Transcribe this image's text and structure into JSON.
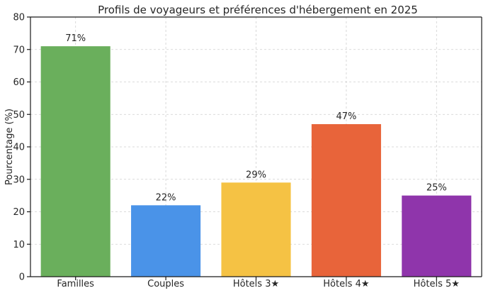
{
  "chart_data": {
    "type": "bar",
    "title": "Profils de voyageurs et préférences d'hébergement en 2025",
    "xlabel": "",
    "ylabel": "Pourcentage (%)",
    "ylim": [
      0,
      80
    ],
    "yticks": [
      0,
      10,
      20,
      30,
      40,
      50,
      60,
      70,
      80
    ],
    "grid": true,
    "categories": [
      "Familles",
      "Couples",
      "Hôtels 3★",
      "Hôtels 4★",
      "Hôtels 5★"
    ],
    "values": [
      71,
      22,
      29,
      47,
      25
    ],
    "data_labels": [
      "71%",
      "22%",
      "29%",
      "47%",
      "25%"
    ],
    "colors": [
      "#6aaf5c",
      "#4a93e8",
      "#f5c244",
      "#e8643a",
      "#8f35ab"
    ]
  }
}
